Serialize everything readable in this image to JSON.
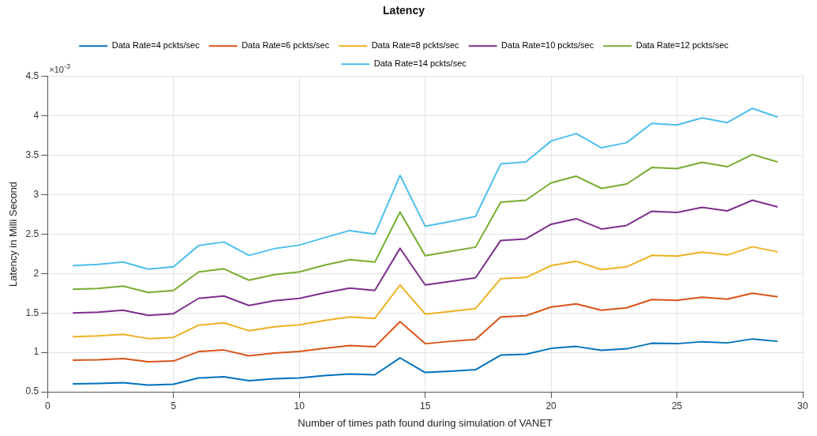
{
  "chart_data": {
    "type": "line",
    "title": "Latency",
    "xlabel": "Number of times path found during simulation of VANET",
    "ylabel": "Latency in Milli Second",
    "annotations": [
      "×10$^{-3}$"
    ],
    "x": [
      1,
      2,
      3,
      4,
      5,
      6,
      7,
      8,
      9,
      10,
      11,
      12,
      13,
      14,
      15,
      16,
      17,
      18,
      19,
      20,
      21,
      22,
      23,
      24,
      25,
      26,
      27,
      28,
      29
    ],
    "series": [
      {
        "name": "Data Rate=4 pckts/sec",
        "color": "#0072bd",
        "values": [
          0.6,
          0.605,
          0.615,
          0.585,
          0.595,
          0.675,
          0.69,
          0.64,
          0.665,
          0.675,
          0.705,
          0.725,
          0.715,
          0.93,
          0.745,
          0.76,
          0.78,
          0.965,
          0.975,
          1.05,
          1.075,
          1.025,
          1.045,
          1.115,
          1.11,
          1.135,
          1.12,
          1.17,
          1.14
        ]
      },
      {
        "name": "Data Rate=6 pckts/sec",
        "color": "#d95319",
        "values": [
          0.9,
          0.905,
          0.92,
          0.88,
          0.89,
          1.01,
          1.03,
          0.955,
          0.99,
          1.01,
          1.05,
          1.085,
          1.07,
          1.39,
          1.11,
          1.14,
          1.165,
          1.45,
          1.465,
          1.575,
          1.615,
          1.535,
          1.565,
          1.67,
          1.66,
          1.7,
          1.675,
          1.75,
          1.705
        ]
      },
      {
        "name": "Data Rate=8 pckts/sec",
        "color": "#edb120",
        "values": [
          1.2,
          1.21,
          1.23,
          1.175,
          1.19,
          1.345,
          1.375,
          1.275,
          1.325,
          1.35,
          1.405,
          1.45,
          1.43,
          1.855,
          1.485,
          1.52,
          1.555,
          1.935,
          1.95,
          2.1,
          2.155,
          2.05,
          2.085,
          2.23,
          2.22,
          2.27,
          2.235,
          2.34,
          2.275
        ]
      },
      {
        "name": "Data Rate=10 pckts/sec",
        "color": "#7e2f8e",
        "values": [
          1.5,
          1.51,
          1.535,
          1.47,
          1.49,
          1.685,
          1.715,
          1.595,
          1.655,
          1.685,
          1.755,
          1.815,
          1.785,
          2.32,
          1.855,
          1.9,
          1.945,
          2.42,
          2.44,
          2.625,
          2.695,
          2.565,
          2.61,
          2.79,
          2.775,
          2.84,
          2.795,
          2.93,
          2.845
        ]
      },
      {
        "name": "Data Rate=12 pckts/sec",
        "color": "#77ac30",
        "values": [
          1.8,
          1.81,
          1.84,
          1.76,
          1.785,
          2.02,
          2.06,
          1.915,
          1.985,
          2.02,
          2.105,
          2.175,
          2.145,
          2.78,
          2.225,
          2.28,
          2.335,
          2.905,
          2.93,
          3.15,
          3.235,
          3.08,
          3.135,
          3.345,
          3.33,
          3.41,
          3.355,
          3.51,
          3.415
        ]
      },
      {
        "name": "Data Rate=14 pckts/sec",
        "color": "#4dbeee",
        "values": [
          2.1,
          2.115,
          2.145,
          2.055,
          2.085,
          2.355,
          2.4,
          2.23,
          2.315,
          2.36,
          2.455,
          2.545,
          2.5,
          3.245,
          2.6,
          2.66,
          2.725,
          3.39,
          3.415,
          3.68,
          3.775,
          3.595,
          3.66,
          3.905,
          3.885,
          3.975,
          3.915,
          4.095,
          3.985
        ]
      }
    ],
    "xlim": [
      0,
      30
    ],
    "xticks": [
      0,
      5,
      10,
      15,
      20,
      25,
      30
    ],
    "ylim": [
      0.5,
      4.5
    ],
    "yticks": [
      0.5,
      1,
      1.5,
      2,
      2.5,
      3,
      3.5,
      4,
      4.5
    ],
    "grid": true,
    "legend": "top",
    "marker": "none",
    "line_style": "solid"
  }
}
